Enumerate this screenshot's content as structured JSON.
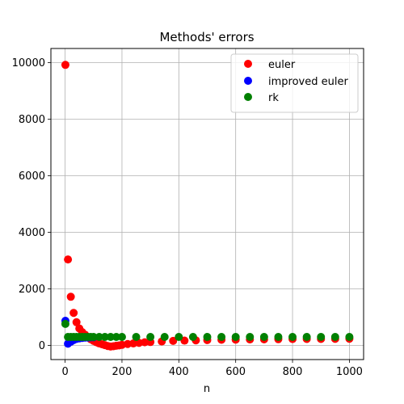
{
  "chart_data": {
    "type": "scatter",
    "title": "Methods' errors",
    "xlabel": "n",
    "ylabel": "",
    "xlim": [
      -50,
      1050
    ],
    "ylim": [
      -500,
      10500
    ],
    "xticks": [
      0,
      200,
      400,
      600,
      800,
      1000
    ],
    "yticks": [
      0,
      2000,
      4000,
      6000,
      8000,
      10000
    ],
    "grid": true,
    "legend_position": "top-right",
    "series": [
      {
        "name": "euler",
        "color": "#ff0000",
        "x": [
          1,
          10,
          20,
          30,
          40,
          50,
          60,
          70,
          80,
          90,
          100,
          110,
          120,
          130,
          140,
          150,
          160,
          170,
          180,
          190,
          200,
          220,
          240,
          260,
          280,
          300,
          340,
          380,
          420,
          460,
          500,
          550,
          600,
          650,
          700,
          750,
          800,
          850,
          900,
          950,
          1000
        ],
        "y": [
          9920,
          3040,
          1720,
          1150,
          820,
          600,
          470,
          380,
          300,
          220,
          160,
          110,
          70,
          40,
          10,
          -20,
          -40,
          -30,
          -10,
          0,
          20,
          50,
          70,
          90,
          110,
          120,
          140,
          160,
          170,
          180,
          190,
          200,
          205,
          210,
          215,
          220,
          225,
          228,
          230,
          232,
          235
        ]
      },
      {
        "name": "improved euler",
        "color": "#0000ff",
        "x": [
          1,
          10,
          20,
          30,
          40,
          50,
          60,
          70,
          80,
          90,
          100
        ],
        "y": [
          870,
          60,
          130,
          190,
          230,
          250,
          265,
          275,
          280,
          285,
          288
        ]
      },
      {
        "name": "rk",
        "color": "#008000",
        "x": [
          1,
          10,
          20,
          30,
          40,
          50,
          60,
          70,
          80,
          90,
          100,
          120,
          140,
          160,
          180,
          200,
          250,
          300,
          350,
          400,
          450,
          500,
          550,
          600,
          650,
          700,
          750,
          800,
          850,
          900,
          950,
          1000
        ],
        "y": [
          760,
          300,
          300,
          300,
          300,
          300,
          300,
          300,
          300,
          300,
          300,
          300,
          300,
          300,
          300,
          300,
          300,
          300,
          300,
          300,
          300,
          300,
          300,
          300,
          300,
          300,
          300,
          300,
          300,
          300,
          300,
          300
        ]
      }
    ]
  }
}
